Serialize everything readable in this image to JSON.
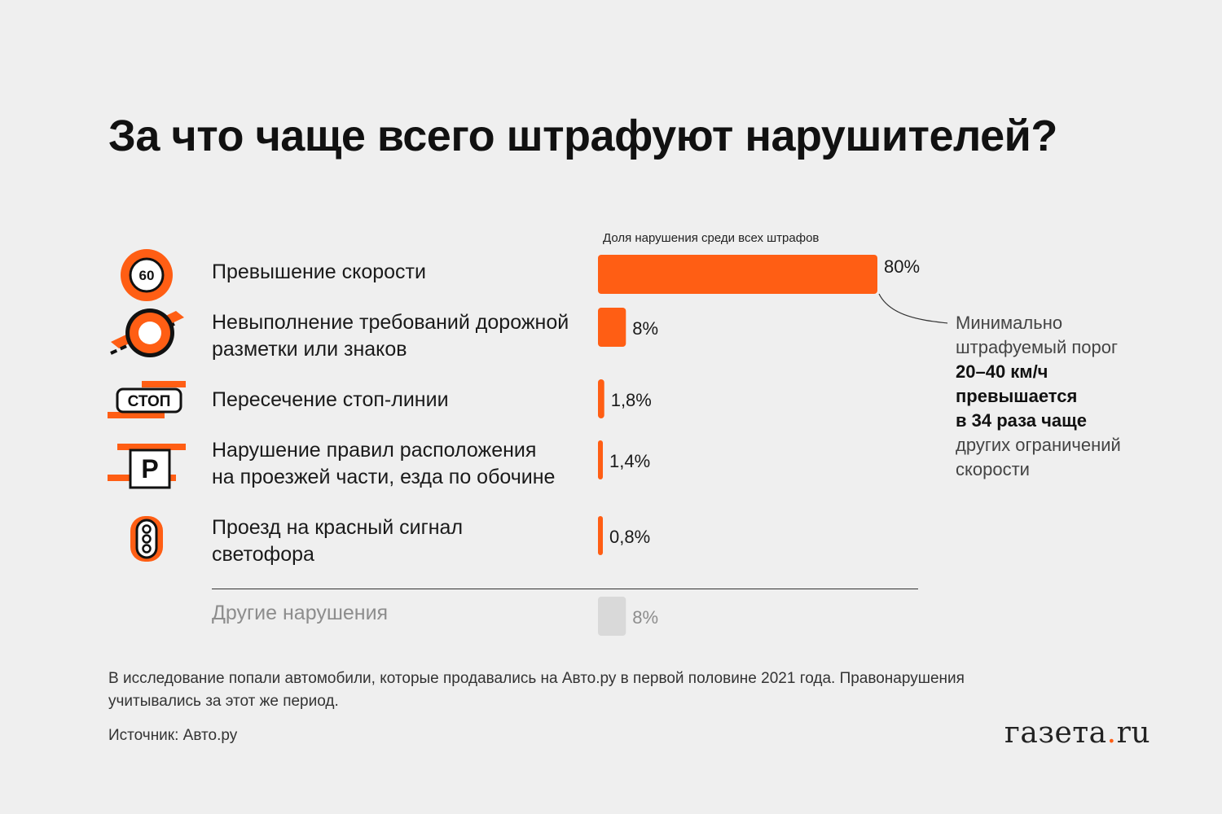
{
  "title": "За что чаще всего штрафуют нарушителей?",
  "bar_caption": "Доля нарушения среди всех штрафов",
  "colors": {
    "accent": "#ff5e14",
    "muted_bar": "#d9d9d9",
    "text": "#111111"
  },
  "rows": [
    {
      "label": "Превышение скорости",
      "icon": "speed-limit-60-icon",
      "icon_text": "60"
    },
    {
      "label": "Невыполнение требований дорожной\nразметки или знаков",
      "icon": "road-sign-icon"
    },
    {
      "label": "Пересечение стоп-линии",
      "icon": "stop-line-icon",
      "icon_text": "СТОП"
    },
    {
      "label": "Нарушение правил расположения\nна проезжей части, езда по обочине",
      "icon": "parking-sign-icon",
      "icon_text": "P"
    },
    {
      "label": "Проезд на красный сигнал\nсветофора",
      "icon": "traffic-light-icon"
    },
    {
      "label": "Другие нарушения",
      "icon": ""
    }
  ],
  "chart_data": {
    "type": "bar",
    "orientation": "horizontal",
    "categories": [
      "Превышение скорости",
      "Невыполнение требований дорожной разметки или знаков",
      "Пересечение стоп-линии",
      "Нарушение правил расположения на проезжей части, езда по обочине",
      "Проезд на красный сигнал светофора",
      "Другие нарушения"
    ],
    "values": [
      80,
      8,
      1.8,
      1.4,
      0.8,
      8
    ],
    "value_labels": [
      "80%",
      "8%",
      "1,8%",
      "1,4%",
      "0,8%",
      "8%"
    ],
    "muted": [
      false,
      false,
      false,
      false,
      false,
      true
    ],
    "unit": "%"
  },
  "callout": {
    "line1": "Минимально",
    "line2": "штрафуемый порог",
    "bold1": "20–40 км/ч",
    "bold2": "превышается",
    "bold3": "в 34 раза чаще",
    "line3": "других ограничений",
    "line4": "скорости"
  },
  "footnote": "В исследование попали автомобили, которые продавались на Авто.ру в первой половине 2021 года. Правонарушения учитывались за этот же период.",
  "source": "Источник: Авто.ру",
  "logo": {
    "main": "газета",
    "dot": ".",
    "tld": "ru"
  }
}
